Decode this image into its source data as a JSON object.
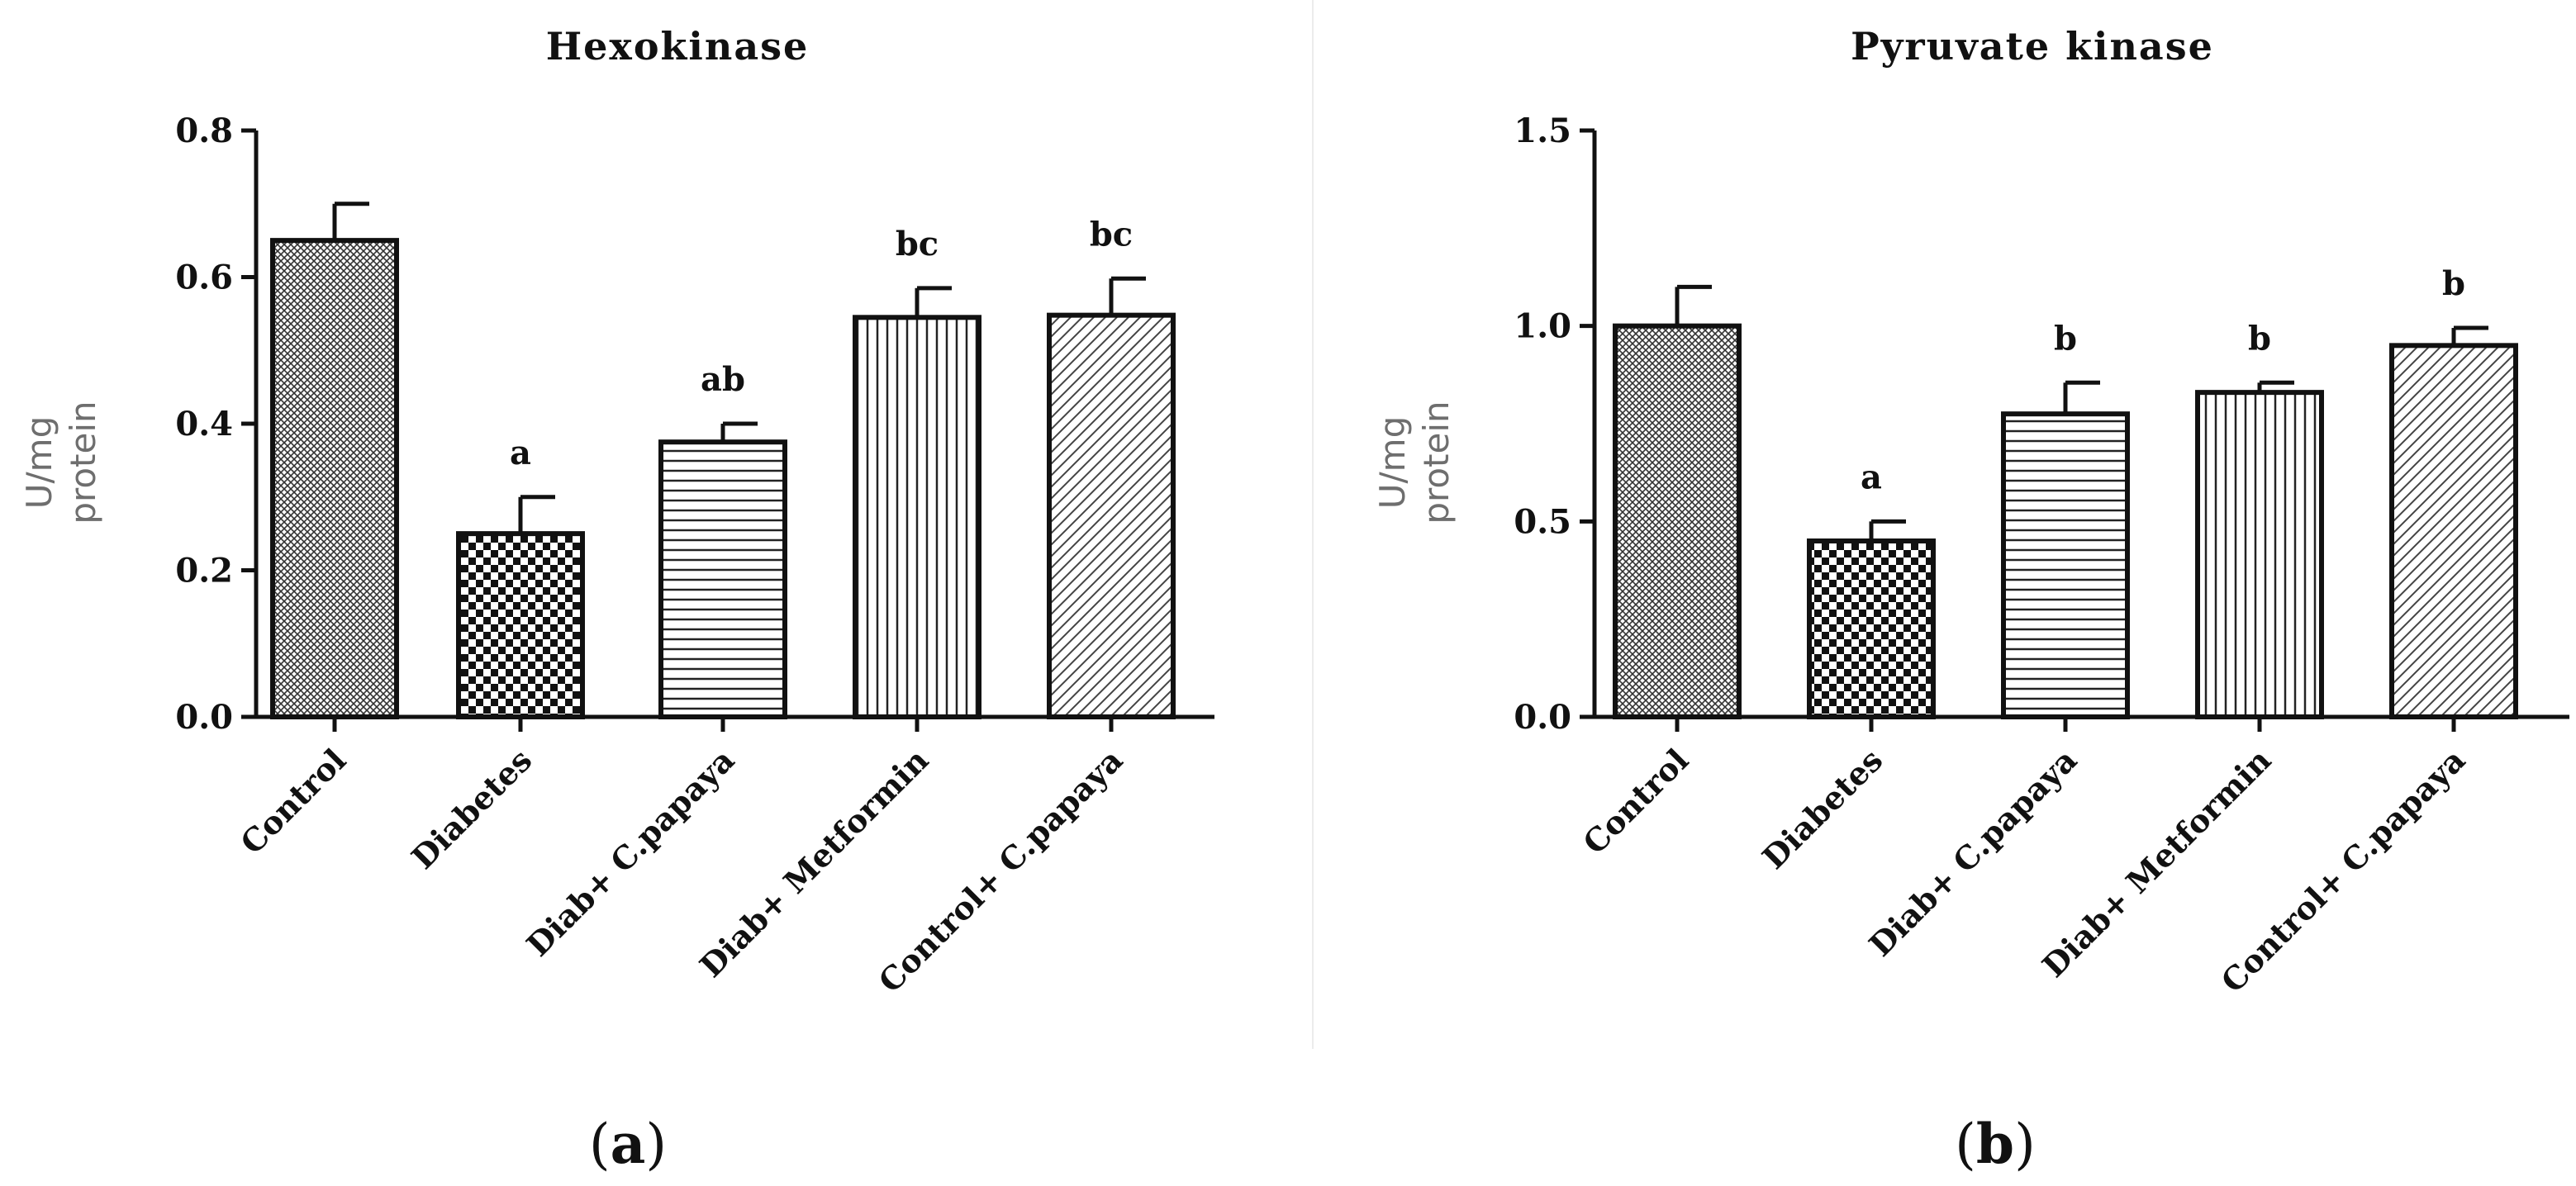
{
  "panels": [
    {
      "letter": "a",
      "open": "(",
      "close": ")"
    },
    {
      "letter": "b",
      "open": "(",
      "close": ")"
    }
  ],
  "chart_data": [
    {
      "type": "bar",
      "title": "Hexokinase",
      "xlabel": "",
      "ylabel": [
        "U/mg",
        "protein"
      ],
      "ylim": [
        0,
        0.8
      ],
      "yticks": [
        "0.0",
        "0.2",
        "0.4",
        "0.6",
        "0.8"
      ],
      "categories": [
        "Control",
        "Diabetes",
        "Diab+ C.papaya",
        "Diab+ Metformin",
        "Control+ C.papaya"
      ],
      "values": [
        0.65,
        0.25,
        0.375,
        0.545,
        0.548
      ],
      "errors": [
        0.05,
        0.05,
        0.025,
        0.04,
        0.05
      ],
      "significance": [
        "",
        "a",
        "ab",
        "bc",
        "bc"
      ],
      "patterns": [
        "crosshatch-dense",
        "checker",
        "horizontal-lines",
        "vertical-lines",
        "diagonal-lines"
      ]
    },
    {
      "type": "bar",
      "title": "Pyruvate kinase",
      "xlabel": "",
      "ylabel": [
        "U/mg",
        "protein"
      ],
      "ylim": [
        0,
        1.5
      ],
      "yticks": [
        "0.0",
        "0.5",
        "1.0",
        "1.5"
      ],
      "categories": [
        "Control",
        "Diabetes",
        "Diab+ C.papaya",
        "Diab+ Metformin",
        "Control+ C.papaya"
      ],
      "values": [
        1.0,
        0.45,
        0.775,
        0.83,
        0.95
      ],
      "errors": [
        0.1,
        0.05,
        0.08,
        0.025,
        0.045
      ],
      "significance": [
        "",
        "a",
        "b",
        "b",
        "b"
      ],
      "patterns": [
        "crosshatch-dense",
        "checker",
        "horizontal-lines",
        "vertical-lines",
        "diagonal-lines"
      ]
    }
  ]
}
